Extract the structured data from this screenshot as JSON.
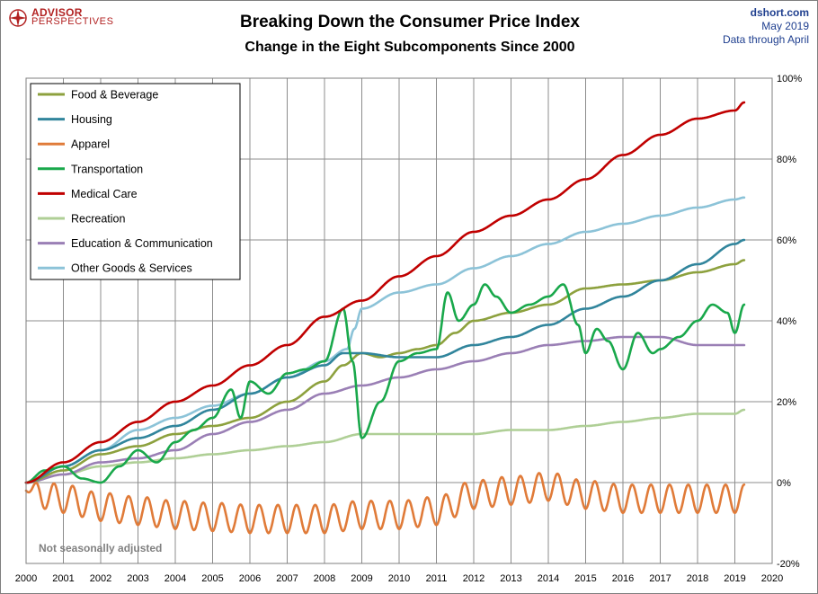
{
  "header": {
    "logo_line1": "ADVISOR",
    "logo_line2": "PERSPECTIVES",
    "title": "Breaking Down the Consumer Price Index",
    "subtitle": "Change in the Eight Subcomponents  Since 2000",
    "source_site": "dshort.com",
    "source_date": "May 2019",
    "source_through": "Data through April"
  },
  "note": "Not seasonally adjusted",
  "chart_data": {
    "type": "line",
    "title": "Breaking Down the Consumer Price Index",
    "subtitle": "Change in the Eight Subcomponents  Since 2000",
    "xlim": [
      2000,
      2020
    ],
    "ylim": [
      -20,
      100
    ],
    "x_ticks": [
      2000,
      2001,
      2002,
      2003,
      2004,
      2005,
      2006,
      2007,
      2008,
      2009,
      2010,
      2011,
      2012,
      2013,
      2014,
      2015,
      2016,
      2017,
      2018,
      2019,
      2020
    ],
    "y_ticks": [
      -20,
      0,
      20,
      40,
      60,
      80,
      100
    ],
    "y_tick_labels": [
      "-20%",
      "0%",
      "20%",
      "40%",
      "60%",
      "80%",
      "100%"
    ],
    "grid": true,
    "legend_position": "top-left",
    "series": [
      {
        "name": "Food & Beverage",
        "color": "#8da13e",
        "x": [
          2000,
          2001,
          2002,
          2003,
          2004,
          2005,
          2006,
          2007,
          2008,
          2008.5,
          2009,
          2009.5,
          2010,
          2010.5,
          2011,
          2011.5,
          2012,
          2013,
          2014,
          2015,
          2016,
          2017,
          2018,
          2019,
          2019.25
        ],
        "y": [
          0,
          3,
          7,
          9,
          12,
          14,
          16,
          20,
          25,
          29,
          32,
          31,
          32,
          33,
          34,
          37,
          40,
          42,
          44,
          48,
          49,
          50,
          52,
          54,
          55
        ]
      },
      {
        "name": "Housing",
        "color": "#31859c",
        "x": [
          2000,
          2001,
          2002,
          2003,
          2004,
          2005,
          2006,
          2007,
          2008,
          2008.5,
          2009,
          2010,
          2011,
          2012,
          2013,
          2014,
          2015,
          2016,
          2017,
          2018,
          2019,
          2019.25
        ],
        "y": [
          0,
          4,
          8,
          11,
          14,
          18,
          22,
          26,
          29,
          32,
          32,
          31,
          31,
          34,
          36,
          39,
          43,
          46,
          50,
          54,
          59,
          60
        ]
      },
      {
        "name": "Apparel",
        "color": "#e07b39",
        "x": [
          2000,
          2001,
          2002,
          2003,
          2004,
          2005,
          2006,
          2007,
          2008,
          2009,
          2010,
          2011,
          2012,
          2013,
          2014,
          2015,
          2016,
          2017,
          2018,
          2019,
          2019.25
        ],
        "y": [
          -2,
          -4,
          -6,
          -7,
          -8,
          -8.5,
          -9,
          -9,
          -9,
          -8,
          -8,
          -7,
          -3,
          -2,
          -1,
          -3,
          -4,
          -4,
          -4,
          -4,
          -4
        ],
        "seasonal_amplitude": 3.5
      },
      {
        "name": "Transportation",
        "color": "#19a84b",
        "x": [
          2000,
          2000.5,
          2001,
          2001.5,
          2002,
          2002.5,
          2003,
          2003.5,
          2004,
          2004.5,
          2005,
          2005.5,
          2005.75,
          2006,
          2006.5,
          2007,
          2007.5,
          2008,
          2008.5,
          2008.75,
          2009,
          2009.5,
          2010,
          2010.5,
          2011,
          2011.3,
          2011.6,
          2012,
          2012.3,
          2012.6,
          2013,
          2013.5,
          2014,
          2014.4,
          2014.8,
          2015,
          2015.3,
          2015.6,
          2016,
          2016.4,
          2016.8,
          2017,
          2017.5,
          2018,
          2018.4,
          2018.8,
          2019,
          2019.25
        ],
        "y": [
          0,
          3,
          4,
          1,
          0,
          4,
          8,
          5,
          10,
          13,
          16,
          23,
          16,
          25,
          22,
          27,
          28,
          30,
          43,
          30,
          11,
          20,
          30,
          32,
          33,
          47,
          40,
          44,
          49,
          46,
          42,
          44,
          46,
          49,
          39,
          32,
          38,
          35,
          28,
          37,
          32,
          33,
          36,
          40,
          44,
          42,
          37,
          44
        ]
      },
      {
        "name": "Medical Care",
        "color": "#c00000",
        "x": [
          2000,
          2001,
          2002,
          2003,
          2004,
          2005,
          2006,
          2007,
          2008,
          2009,
          2010,
          2011,
          2012,
          2013,
          2014,
          2015,
          2016,
          2017,
          2018,
          2019,
          2019.25
        ],
        "y": [
          0,
          5,
          10,
          15,
          20,
          24,
          29,
          34,
          41,
          45,
          51,
          56,
          62,
          66,
          70,
          75,
          81,
          86,
          90,
          92,
          94
        ]
      },
      {
        "name": "Recreation",
        "color": "#afcf96",
        "x": [
          2000,
          2001,
          2002,
          2003,
          2004,
          2005,
          2006,
          2007,
          2008,
          2009,
          2010,
          2011,
          2012,
          2013,
          2014,
          2015,
          2016,
          2017,
          2018,
          2019,
          2019.25
        ],
        "y": [
          0,
          2,
          4,
          5,
          6,
          7,
          8,
          9,
          10,
          12,
          12,
          12,
          12,
          13,
          13,
          14,
          15,
          16,
          17,
          17,
          18
        ]
      },
      {
        "name": "Education & Communication",
        "color": "#9a7fb5",
        "x": [
          2000,
          2001,
          2002,
          2003,
          2004,
          2005,
          2006,
          2007,
          2008,
          2009,
          2010,
          2011,
          2012,
          2013,
          2014,
          2015,
          2016,
          2017,
          2018,
          2019,
          2019.25
        ],
        "y": [
          0,
          2,
          5,
          6,
          8,
          12,
          15,
          18,
          22,
          24,
          26,
          28,
          30,
          32,
          34,
          35,
          36,
          36,
          34,
          34,
          34
        ]
      },
      {
        "name": "Other Goods & Services",
        "color": "#8cc3d8",
        "x": [
          2000,
          2001,
          2002,
          2003,
          2004,
          2005,
          2006,
          2007,
          2008,
          2008.6,
          2008.8,
          2009,
          2010,
          2011,
          2012,
          2013,
          2014,
          2015,
          2016,
          2017,
          2018,
          2019,
          2019.25
        ],
        "y": [
          0,
          4,
          8,
          13,
          16,
          19,
          22,
          26,
          30,
          33,
          38,
          43,
          47,
          49,
          53,
          56,
          59,
          62,
          64,
          66,
          68,
          70,
          70.5
        ]
      }
    ]
  }
}
